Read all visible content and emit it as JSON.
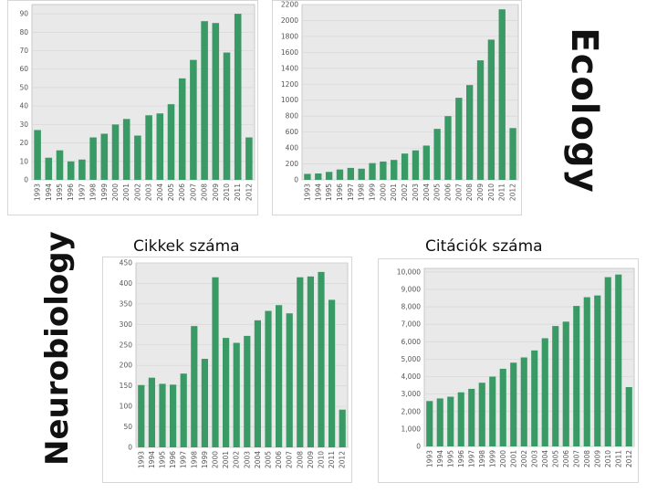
{
  "labels": {
    "ecology": "Ecology",
    "neurobiology": "Neurobiology",
    "articles": "Cikkek száma",
    "citations": "Citációk száma"
  },
  "colors": {
    "bar": "#3a9a66",
    "plot_bg": "#e9e9e9",
    "grid": "#d9d9d9"
  },
  "chart_data": [
    {
      "id": "ecology-articles",
      "type": "bar",
      "title": "",
      "xlabel": "",
      "ylabel": "",
      "categories": [
        "1993",
        "1994",
        "1995",
        "1996",
        "1997",
        "1998",
        "1999",
        "2000",
        "2001",
        "2002",
        "2003",
        "2004",
        "2005",
        "2006",
        "2007",
        "2008",
        "2009",
        "2010",
        "2011",
        "2012"
      ],
      "values": [
        27,
        12,
        16,
        10,
        11,
        23,
        25,
        30,
        33,
        24,
        35,
        36,
        41,
        55,
        65,
        86,
        85,
        69,
        90,
        23
      ],
      "ylim": [
        0,
        95
      ],
      "yticks": [
        0,
        10,
        20,
        30,
        40,
        50,
        60,
        70,
        80,
        90
      ],
      "ytick_labels": [
        "0",
        "10",
        "20",
        "30",
        "40",
        "50",
        "60",
        "70",
        "80",
        "90"
      ],
      "grid": true
    },
    {
      "id": "ecology-citations",
      "type": "bar",
      "title": "",
      "xlabel": "",
      "ylabel": "",
      "categories": [
        "1993",
        "1994",
        "1995",
        "1996",
        "1997",
        "1998",
        "1999",
        "2000",
        "2001",
        "2002",
        "2003",
        "2004",
        "2005",
        "2006",
        "2007",
        "2008",
        "2009",
        "2010",
        "2011",
        "2012"
      ],
      "values": [
        75,
        80,
        100,
        130,
        150,
        140,
        210,
        230,
        250,
        330,
        370,
        430,
        640,
        800,
        1030,
        1190,
        1500,
        1760,
        2140,
        650
      ],
      "ylim": [
        0,
        2200
      ],
      "yticks": [
        0,
        200,
        400,
        600,
        800,
        1000,
        1200,
        1400,
        1600,
        1800,
        2000,
        2200
      ],
      "ytick_labels": [
        "0",
        "200",
        "400",
        "600",
        "800",
        "1000",
        "1200",
        "1400",
        "1600",
        "1800",
        "2000",
        "2200"
      ],
      "grid": true
    },
    {
      "id": "neuro-articles",
      "type": "bar",
      "title": "",
      "xlabel": "",
      "ylabel": "",
      "categories": [
        "1993",
        "1994",
        "1995",
        "1996",
        "1997",
        "1998",
        "1999",
        "2000",
        "2001",
        "2002",
        "2003",
        "2004",
        "2005",
        "2006",
        "2007",
        "2008",
        "2009",
        "2010",
        "2011",
        "2012"
      ],
      "values": [
        152,
        170,
        155,
        153,
        180,
        296,
        216,
        415,
        267,
        255,
        272,
        310,
        333,
        347,
        327,
        415,
        417,
        428,
        360,
        92
      ],
      "ylim": [
        0,
        450
      ],
      "yticks": [
        0,
        50,
        100,
        150,
        200,
        250,
        300,
        350,
        400,
        450
      ],
      "ytick_labels": [
        "0",
        "50",
        "100",
        "150",
        "200",
        "250",
        "300",
        "350",
        "400",
        "450"
      ],
      "grid": true
    },
    {
      "id": "neuro-citations",
      "type": "bar",
      "title": "",
      "xlabel": "",
      "ylabel": "",
      "categories": [
        "1993",
        "1994",
        "1995",
        "1996",
        "1997",
        "1998",
        "1999",
        "2000",
        "2001",
        "2002",
        "2003",
        "2004",
        "2005",
        "2006",
        "2007",
        "2008",
        "2009",
        "2010",
        "2011",
        "2012"
      ],
      "values": [
        2600,
        2750,
        2850,
        3100,
        3300,
        3650,
        4000,
        4450,
        4800,
        5100,
        5500,
        6200,
        6900,
        7150,
        8050,
        8550,
        8650,
        9700,
        9850,
        3400
      ],
      "ylim": [
        0,
        10200
      ],
      "yticks": [
        0,
        1000,
        2000,
        3000,
        4000,
        5000,
        6000,
        7000,
        8000,
        9000,
        10000
      ],
      "ytick_labels": [
        "0",
        "1,000",
        "2,000",
        "3,000",
        "4,000",
        "5,000",
        "6,000",
        "7,000",
        "8,000",
        "9,000",
        "10,000"
      ],
      "grid": true
    }
  ]
}
